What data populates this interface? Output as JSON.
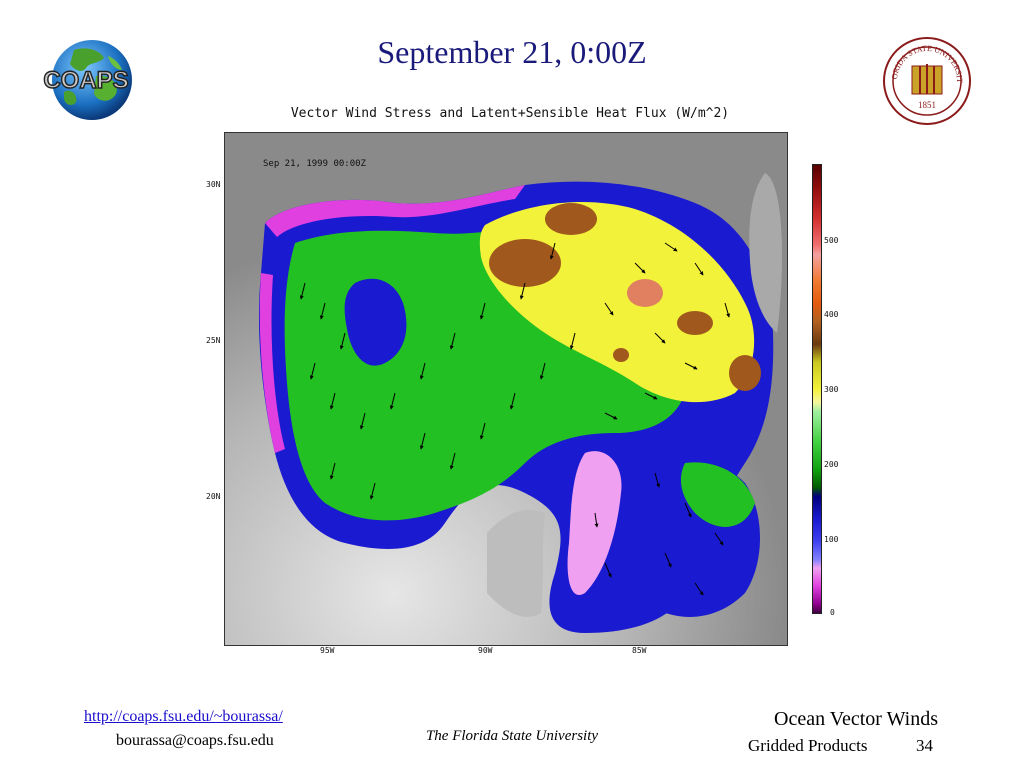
{
  "slide": {
    "title": "September 21, 0:00Z"
  },
  "logos": {
    "left_text": "COAPS",
    "left_icon": "globe-icon",
    "right_text_top": "FLORIDA STATE UNIVERSITY",
    "right_year": "1851",
    "right_icon": "university-seal-icon"
  },
  "map": {
    "title": "Vector Wind Stress and Latent+Sensible Heat Flux (W/m^2)",
    "stamp": "Sep 21, 1999 00:00Z",
    "lat_labels": [
      "30N",
      "25N",
      "20N"
    ],
    "lon_labels": [
      "95W",
      "90W",
      "85W"
    ],
    "colorbar_labels": [
      "500",
      "400",
      "300",
      "200",
      "100",
      "0"
    ],
    "colors": {
      "land": "#9a9a9a",
      "high": "#8b4513",
      "mid_high": "#f2f23a",
      "mid": "#22c022",
      "low": "#1a1ad0",
      "lowest": "#e040e0"
    }
  },
  "footer": {
    "link": "http://coaps.fsu.edu/~bourassa/",
    "email": "bourassa@coaps.fsu.edu",
    "university": "The Florida State University",
    "course": "Ocean Vector Winds",
    "subtitle": "Gridded Products",
    "page": "34"
  }
}
